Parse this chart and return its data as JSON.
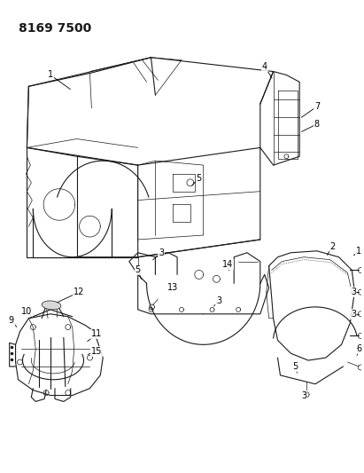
{
  "title_code": "8169 7500",
  "bg_color": "#ffffff",
  "line_color": "#1a1a1a",
  "title_fontsize": 10,
  "fig_width": 4.11,
  "fig_height": 5.33,
  "dpi": 100
}
